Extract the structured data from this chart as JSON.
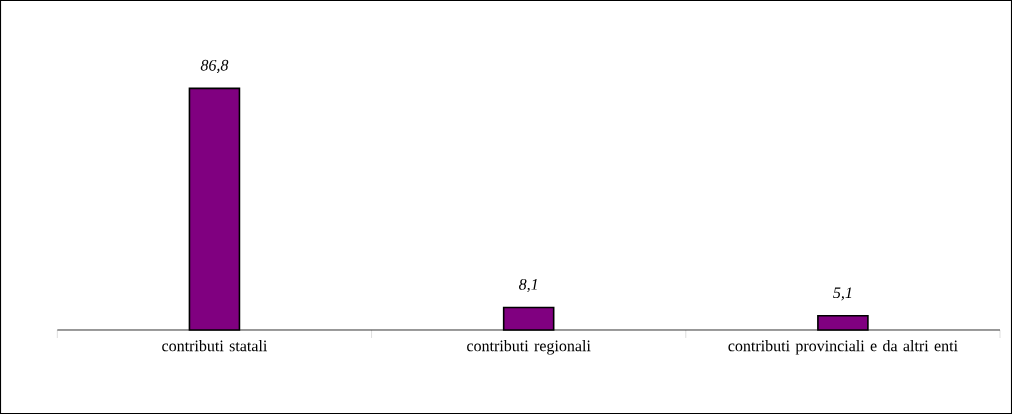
{
  "chart_data": {
    "type": "bar",
    "categories": [
      "contributi statali",
      "contributi regionali",
      "contributi provinciali e da altri enti"
    ],
    "values": [
      86.8,
      8.1,
      5.1
    ],
    "value_labels": [
      "86,8",
      "8,1",
      "5,1"
    ],
    "color": "#800080"
  }
}
